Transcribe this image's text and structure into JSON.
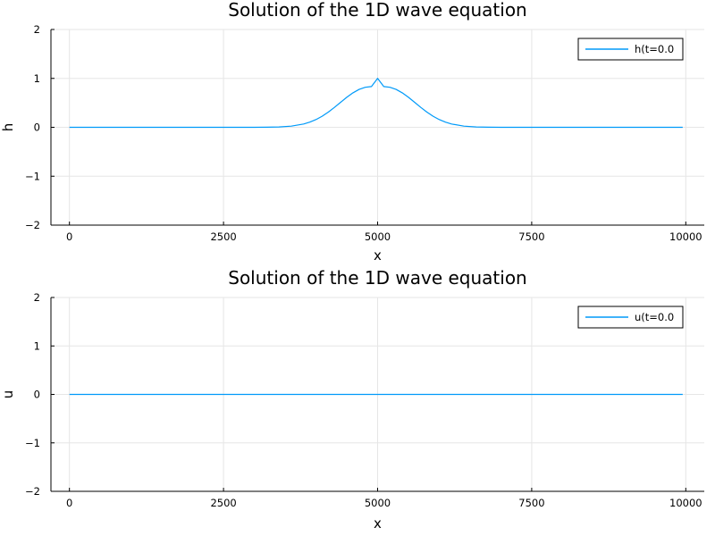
{
  "chart_data": [
    {
      "type": "line",
      "title": "Solution of the 1D wave equation",
      "xlabel": "x",
      "ylabel": "h",
      "xlim": [
        -300,
        10300
      ],
      "ylim": [
        -2,
        2
      ],
      "x_ticks": [
        0,
        2500,
        5000,
        7500,
        10000
      ],
      "x_tick_labels": [
        "0",
        "2500",
        "5000",
        "7500",
        "10000"
      ],
      "y_ticks": [
        -2,
        -1,
        0,
        1,
        2
      ],
      "y_tick_labels": [
        "−2",
        "−1",
        "0",
        "1",
        "2"
      ],
      "grid": true,
      "legend_position": "top-right",
      "series": [
        {
          "name": "h(t=0.0",
          "color": "#009af9",
          "x": [
            0,
            1000,
            2000,
            3000,
            3200,
            3400,
            3600,
            3800,
            3900,
            4000,
            4100,
            4200,
            4300,
            4400,
            4500,
            4600,
            4700,
            4800,
            4900,
            5000,
            5100,
            5200,
            5300,
            5400,
            5500,
            5600,
            5700,
            5800,
            5900,
            6000,
            6100,
            6200,
            6400,
            6600,
            6800,
            7000,
            8000,
            9000,
            9950
          ],
          "y": [
            0,
            0,
            0,
            0.0003,
            0.0016,
            0.0067,
            0.0235,
            0.0672,
            0.1054,
            0.1581,
            0.2267,
            0.3109,
            0.4076,
            0.5114,
            0.6137,
            0.7046,
            0.7749,
            0.8187,
            0.8335,
            1.0,
            0.8335,
            0.8187,
            0.7749,
            0.7046,
            0.6137,
            0.5114,
            0.4076,
            0.3109,
            0.2267,
            0.1581,
            0.1054,
            0.0672,
            0.0235,
            0.0067,
            0.0016,
            0.0003,
            0,
            0,
            0
          ]
        }
      ]
    },
    {
      "type": "line",
      "title": "Solution of the 1D wave equation",
      "xlabel": "x",
      "ylabel": "u",
      "xlim": [
        -300,
        10300
      ],
      "ylim": [
        -2,
        2
      ],
      "x_ticks": [
        0,
        2500,
        5000,
        7500,
        10000
      ],
      "x_tick_labels": [
        "0",
        "2500",
        "5000",
        "7500",
        "10000"
      ],
      "y_ticks": [
        -2,
        -1,
        0,
        1,
        2
      ],
      "y_tick_labels": [
        "−2",
        "−1",
        "0",
        "1",
        "2"
      ],
      "grid": true,
      "legend_position": "top-right",
      "series": [
        {
          "name": "u(t=0.0",
          "color": "#009af9",
          "x": [
            0,
            2500,
            5000,
            7500,
            9950
          ],
          "y": [
            0,
            0,
            0,
            0,
            0
          ]
        }
      ]
    }
  ]
}
